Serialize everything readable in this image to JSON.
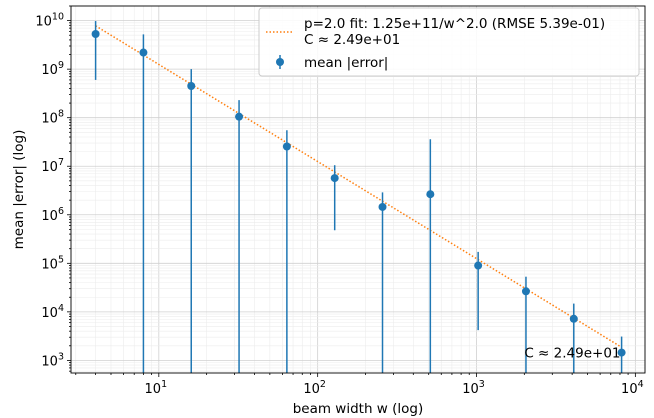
{
  "chart_data": {
    "type": "scatter",
    "title": "",
    "xlabel": "beam width w (log)",
    "ylabel": "mean |error| (log)",
    "xscale": "log",
    "yscale": "log",
    "xlim": [
      2.8,
      11500
    ],
    "ylim": [
      550,
      20000000000
    ],
    "grid": true,
    "legend_placement": "top-right",
    "x_ticks": [
      {
        "value": 10,
        "base": "10",
        "exp": "1"
      },
      {
        "value": 100,
        "base": "10",
        "exp": "2"
      },
      {
        "value": 1000,
        "base": "10",
        "exp": "3"
      },
      {
        "value": 10000,
        "base": "10",
        "exp": "4"
      }
    ],
    "y_ticks": [
      {
        "value": 1000,
        "base": "10",
        "exp": "3"
      },
      {
        "value": 10000,
        "base": "10",
        "exp": "4"
      },
      {
        "value": 100000,
        "base": "10",
        "exp": "5"
      },
      {
        "value": 1000000,
        "base": "10",
        "exp": "6"
      },
      {
        "value": 10000000,
        "base": "10",
        "exp": "7"
      },
      {
        "value": 100000000,
        "base": "10",
        "exp": "8"
      },
      {
        "value": 1000000000,
        "base": "10",
        "exp": "9"
      },
      {
        "value": 10000000000,
        "base": "10",
        "exp": "10"
      }
    ],
    "series": [
      {
        "name": "mean |error|",
        "color": "#1f77b4",
        "x": [
          4,
          8,
          16,
          32,
          64,
          128,
          256,
          512,
          1024,
          2048,
          4096,
          8192
        ],
        "y": [
          5300000000,
          2200000000,
          450000000,
          105000000,
          25500000,
          5700000,
          1450000,
          2650000,
          90000,
          26500,
          7200,
          1450
        ],
        "err_low": [
          600000000,
          500,
          500,
          500,
          500,
          480000,
          500,
          500,
          4200,
          500,
          500,
          500
        ],
        "err_high": [
          9800000000,
          5200000000,
          1000000000,
          230000000,
          55000000,
          10500000,
          2900000,
          36000000,
          172000,
          53000,
          14800,
          3100
        ]
      },
      {
        "name": "p=2.0 fit: 1.25e+11/w^2.0  (RMSE 5.39e-01)",
        "name_line2": "C ≈ 2.49e+01",
        "color": "#ff7f0e",
        "style": "dotted",
        "x": [
          4,
          8192
        ],
        "y": [
          7812500000,
          1862.6
        ]
      }
    ],
    "annotations": [
      {
        "text": "C ≈ 2.49e+01",
        "x": 2000,
        "y": 1450
      }
    ]
  }
}
